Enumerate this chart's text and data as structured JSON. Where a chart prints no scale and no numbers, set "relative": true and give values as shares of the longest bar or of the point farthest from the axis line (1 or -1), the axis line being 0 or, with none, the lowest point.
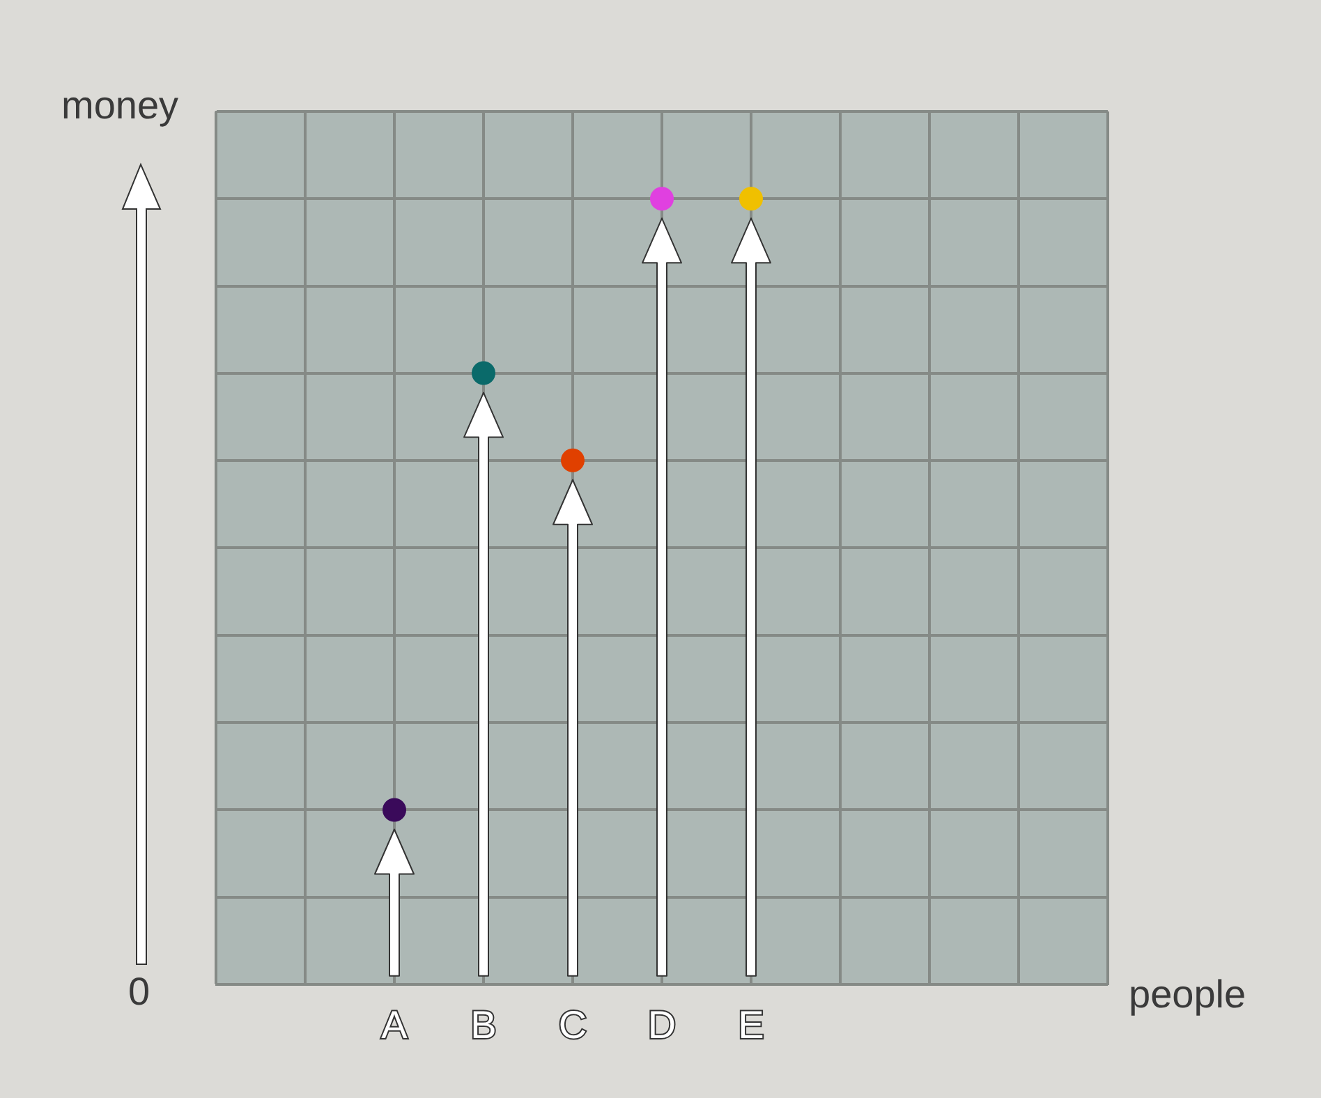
{
  "chart_data": {
    "type": "lollipop",
    "xlabel": "people",
    "ylabel": "money",
    "annotations": [
      "0"
    ],
    "categories": [
      null,
      null,
      "A",
      "B",
      "C",
      "D",
      "E",
      null,
      null,
      null,
      null
    ],
    "values": [
      null,
      null,
      0.222,
      0.778,
      0.667,
      1,
      1,
      null,
      null,
      null,
      null
    ],
    "colors": [
      "#3a0a5a",
      "#3a0a5a",
      "#3a0a5a",
      "#0a6a6a",
      "#e04000",
      "#e040e0",
      "#f0c000",
      "#f0c000",
      "#f0c000",
      "#f0c000",
      "#f0c000"
    ],
    "relative": true,
    "grid": true,
    "marker": "circle"
  }
}
